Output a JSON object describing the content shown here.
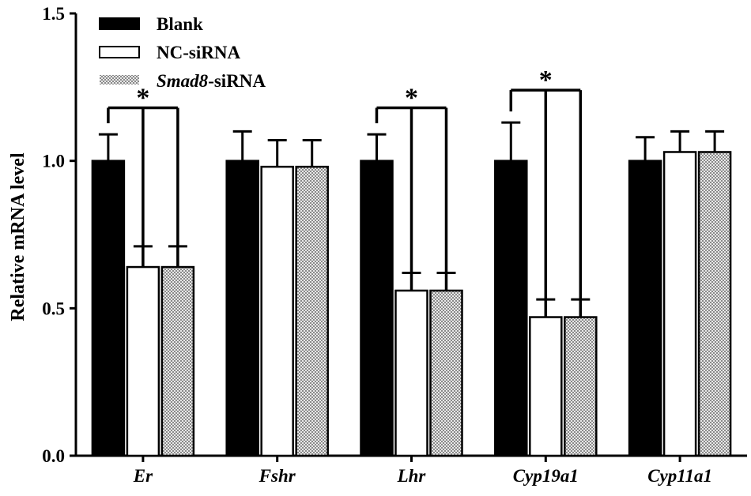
{
  "chart_data": {
    "type": "bar",
    "title": "",
    "xlabel": "",
    "ylabel": "Relative  mRNA level",
    "ylim": [
      0,
      1.5
    ],
    "yticks": [
      "0.0",
      "0.5",
      "1.0",
      "1.5"
    ],
    "categories": [
      "Er",
      "Fshr",
      "Lhr",
      "Cyp19a1",
      "Cyp11a1"
    ],
    "series": [
      {
        "name": "Blank",
        "legend_italic": "",
        "legend_rest": "Blank",
        "values": [
          1.0,
          1.0,
          1.0,
          1.0,
          1.0
        ],
        "errors": [
          0.09,
          0.1,
          0.09,
          0.13,
          0.08
        ],
        "fill": "#000000"
      },
      {
        "name": "NC-siRNA",
        "legend_italic": "",
        "legend_rest": "NC-siRNA",
        "values": [
          0.64,
          0.98,
          0.56,
          0.47,
          1.03
        ],
        "errors": [
          0.07,
          0.09,
          0.06,
          0.06,
          0.07
        ],
        "fill": "#ffffff"
      },
      {
        "name": "Smad8-siRNA",
        "legend_italic": "Smad8",
        "legend_rest": "-siRNA",
        "values": [
          0.64,
          0.98,
          0.56,
          0.47,
          1.03
        ],
        "errors": [
          0.07,
          0.09,
          0.06,
          0.06,
          0.07
        ],
        "fill": "checkered-gray"
      }
    ],
    "significance": [
      {
        "category": "Er",
        "label": "*",
        "level": 1.18
      },
      {
        "category": "Lhr",
        "label": "*",
        "level": 1.18
      },
      {
        "category": "Cyp19a1",
        "label": "*",
        "level": 1.24
      }
    ],
    "legend_position": "top-left",
    "grid": false
  }
}
